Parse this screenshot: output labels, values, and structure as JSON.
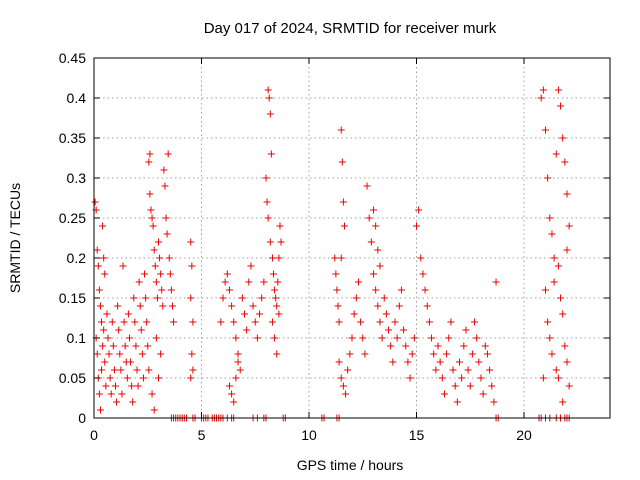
{
  "chart_data": {
    "type": "scatter",
    "title": "Day 017 of 2024, SRMTID for receiver murk",
    "xlabel": "GPS time / hours",
    "ylabel": "SRMTID / TECUs",
    "xlim": [
      0,
      24
    ],
    "ylim": [
      0,
      0.45
    ],
    "x_ticks": [
      0,
      5,
      10,
      15,
      20
    ],
    "y_ticks": [
      0,
      0.05,
      0.1,
      0.15,
      0.2,
      0.25,
      0.3,
      0.35,
      0.4,
      0.45
    ],
    "x_tick_labels": [
      "0",
      "5",
      "10",
      "15",
      "20"
    ],
    "y_tick_labels": [
      "0",
      "0.05",
      "0.1",
      "0.15",
      "0.2",
      "0.25",
      "0.3",
      "0.35",
      "0.4",
      "0.45"
    ],
    "grid": true,
    "marker": "+",
    "color": "#ee0000",
    "series": [
      {
        "name": "SRMTID",
        "points": [
          [
            0.05,
            0.27
          ],
          [
            0.1,
            0.26
          ],
          [
            0.15,
            0.21
          ],
          [
            0.2,
            0.19
          ],
          [
            0.25,
            0.16
          ],
          [
            0.3,
            0.14
          ],
          [
            0.35,
            0.12
          ],
          [
            0.4,
            0.24
          ],
          [
            0.45,
            0.2
          ],
          [
            0.5,
            0.18
          ],
          [
            0.1,
            0.1
          ],
          [
            0.15,
            0.08
          ],
          [
            0.2,
            0.05
          ],
          [
            0.25,
            0.03
          ],
          [
            0.3,
            0.01
          ],
          [
            0.35,
            0.06
          ],
          [
            0.4,
            0.09
          ],
          [
            0.45,
            0.11
          ],
          [
            0.5,
            0.07
          ],
          [
            0.55,
            0.04
          ],
          [
            0.6,
            0.13
          ],
          [
            0.65,
            0.1
          ],
          [
            0.7,
            0.08
          ],
          [
            0.75,
            0.05
          ],
          [
            0.8,
            0.03
          ],
          [
            0.85,
            0.12
          ],
          [
            0.9,
            0.09
          ],
          [
            0.95,
            0.06
          ],
          [
            1.0,
            0.04
          ],
          [
            1.05,
            0.02
          ],
          [
            1.1,
            0.14
          ],
          [
            1.15,
            0.11
          ],
          [
            1.2,
            0.08
          ],
          [
            1.25,
            0.06
          ],
          [
            1.3,
            0.03
          ],
          [
            1.35,
            0.19
          ],
          [
            1.4,
            0.12
          ],
          [
            1.45,
            0.09
          ],
          [
            1.5,
            0.07
          ],
          [
            1.55,
            0.05
          ],
          [
            1.6,
            0.13
          ],
          [
            1.65,
            0.1
          ],
          [
            1.7,
            0.07
          ],
          [
            1.75,
            0.04
          ],
          [
            1.8,
            0.02
          ],
          [
            1.85,
            0.15
          ],
          [
            1.9,
            0.12
          ],
          [
            1.95,
            0.09
          ],
          [
            2.0,
            0.06
          ],
          [
            2.05,
            0.04
          ],
          [
            2.1,
            0.17
          ],
          [
            2.15,
            0.14
          ],
          [
            2.2,
            0.11
          ],
          [
            2.25,
            0.08
          ],
          [
            2.3,
            0.05
          ],
          [
            2.35,
            0.18
          ],
          [
            2.4,
            0.15
          ],
          [
            2.45,
            0.12
          ],
          [
            2.5,
            0.09
          ],
          [
            2.55,
            0.06
          ],
          [
            2.55,
            0.32
          ],
          [
            2.6,
            0.33
          ],
          [
            2.6,
            0.28
          ],
          [
            2.65,
            0.26
          ],
          [
            2.7,
            0.25
          ],
          [
            2.75,
            0.24
          ],
          [
            2.8,
            0.21
          ],
          [
            2.85,
            0.19
          ],
          [
            2.9,
            0.17
          ],
          [
            2.95,
            0.15
          ],
          [
            3.0,
            0.22
          ],
          [
            3.05,
            0.2
          ],
          [
            3.1,
            0.18
          ],
          [
            3.15,
            0.16
          ],
          [
            3.2,
            0.14
          ],
          [
            3.25,
            0.31
          ],
          [
            3.3,
            0.29
          ],
          [
            3.35,
            0.25
          ],
          [
            3.4,
            0.23
          ],
          [
            3.45,
            0.33
          ],
          [
            3.5,
            0.2
          ],
          [
            3.55,
            0.18
          ],
          [
            3.6,
            0.16
          ],
          [
            3.65,
            0.14
          ],
          [
            3.7,
            0.12
          ],
          [
            2.7,
            0.03
          ],
          [
            2.8,
            0.01
          ],
          [
            3.0,
            0.05
          ],
          [
            3.1,
            0.08
          ],
          [
            2.9,
            0.1
          ],
          [
            3.6,
            0.0
          ],
          [
            3.7,
            0.0
          ],
          [
            3.8,
            0.0
          ],
          [
            3.9,
            0.0
          ],
          [
            4.0,
            0.0
          ],
          [
            4.1,
            0.0
          ],
          [
            4.2,
            0.0
          ],
          [
            4.3,
            0.0
          ],
          [
            4.6,
            0.0
          ],
          [
            4.7,
            0.0
          ],
          [
            4.5,
            0.22
          ],
          [
            4.55,
            0.19
          ],
          [
            4.5,
            0.15
          ],
          [
            4.6,
            0.12
          ],
          [
            4.55,
            0.08
          ],
          [
            4.6,
            0.06
          ],
          [
            4.5,
            0.05
          ],
          [
            5.0,
            0.0
          ],
          [
            5.1,
            0.0
          ],
          [
            5.2,
            0.0
          ],
          [
            5.3,
            0.0
          ],
          [
            5.5,
            0.0
          ],
          [
            5.6,
            0.0
          ],
          [
            5.7,
            0.0
          ],
          [
            5.8,
            0.0
          ],
          [
            5.9,
            0.0
          ],
          [
            6.0,
            0.0
          ],
          [
            6.2,
            0.0
          ],
          [
            6.4,
            0.0
          ],
          [
            6.5,
            0.0
          ],
          [
            5.9,
            0.12
          ],
          [
            6.0,
            0.15
          ],
          [
            6.1,
            0.17
          ],
          [
            6.2,
            0.18
          ],
          [
            6.3,
            0.16
          ],
          [
            6.4,
            0.14
          ],
          [
            6.5,
            0.12
          ],
          [
            6.6,
            0.1
          ],
          [
            6.7,
            0.08
          ],
          [
            6.8,
            0.06
          ],
          [
            6.3,
            0.04
          ],
          [
            6.4,
            0.03
          ],
          [
            6.5,
            0.02
          ],
          [
            6.6,
            0.05
          ],
          [
            6.7,
            0.07
          ],
          [
            6.9,
            0.15
          ],
          [
            7.0,
            0.13
          ],
          [
            7.1,
            0.11
          ],
          [
            7.2,
            0.17
          ],
          [
            7.3,
            0.19
          ],
          [
            7.4,
            0.14
          ],
          [
            7.5,
            0.12
          ],
          [
            7.6,
            0.1
          ],
          [
            7.7,
            0.13
          ],
          [
            7.8,
            0.15
          ],
          [
            7.9,
            0.17
          ],
          [
            7.4,
            0.0
          ],
          [
            7.6,
            0.0
          ],
          [
            7.9,
            0.0
          ],
          [
            8.0,
            0.0
          ],
          [
            8.0,
            0.3
          ],
          [
            8.05,
            0.27
          ],
          [
            8.1,
            0.41
          ],
          [
            8.15,
            0.4
          ],
          [
            8.2,
            0.38
          ],
          [
            8.25,
            0.33
          ],
          [
            8.1,
            0.25
          ],
          [
            8.2,
            0.22
          ],
          [
            8.3,
            0.2
          ],
          [
            8.35,
            0.18
          ],
          [
            8.4,
            0.16
          ],
          [
            8.45,
            0.15
          ],
          [
            8.5,
            0.14
          ],
          [
            8.55,
            0.17
          ],
          [
            8.6,
            0.2
          ],
          [
            8.65,
            0.24
          ],
          [
            8.7,
            0.22
          ],
          [
            8.3,
            0.12
          ],
          [
            8.4,
            0.1
          ],
          [
            8.5,
            0.08
          ],
          [
            8.6,
            0.13
          ],
          [
            8.8,
            0.0
          ],
          [
            8.9,
            0.0
          ],
          [
            10.6,
            0.0
          ],
          [
            10.7,
            0.0
          ],
          [
            11.3,
            0.0
          ],
          [
            11.4,
            0.0
          ],
          [
            11.2,
            0.2
          ],
          [
            11.25,
            0.18
          ],
          [
            11.3,
            0.16
          ],
          [
            11.35,
            0.14
          ],
          [
            11.4,
            0.12
          ],
          [
            11.5,
            0.36
          ],
          [
            11.55,
            0.32
          ],
          [
            11.6,
            0.27
          ],
          [
            11.65,
            0.24
          ],
          [
            11.5,
            0.2
          ],
          [
            11.4,
            0.07
          ],
          [
            11.5,
            0.05
          ],
          [
            11.6,
            0.04
          ],
          [
            11.7,
            0.03
          ],
          [
            11.8,
            0.06
          ],
          [
            11.9,
            0.08
          ],
          [
            12.0,
            0.1
          ],
          [
            12.1,
            0.13
          ],
          [
            12.2,
            0.15
          ],
          [
            12.3,
            0.17
          ],
          [
            12.4,
            0.12
          ],
          [
            12.5,
            0.1
          ],
          [
            12.6,
            0.08
          ],
          [
            12.7,
            0.29
          ],
          [
            12.8,
            0.25
          ],
          [
            12.9,
            0.22
          ],
          [
            13.0,
            0.26
          ],
          [
            13.1,
            0.24
          ],
          [
            13.2,
            0.21
          ],
          [
            13.3,
            0.19
          ],
          [
            13.0,
            0.18
          ],
          [
            13.1,
            0.16
          ],
          [
            13.2,
            0.14
          ],
          [
            13.3,
            0.12
          ],
          [
            13.4,
            0.1
          ],
          [
            13.5,
            0.15
          ],
          [
            13.6,
            0.13
          ],
          [
            13.7,
            0.11
          ],
          [
            13.8,
            0.09
          ],
          [
            13.9,
            0.07
          ],
          [
            14.0,
            0.12
          ],
          [
            14.1,
            0.1
          ],
          [
            14.2,
            0.14
          ],
          [
            14.3,
            0.16
          ],
          [
            14.4,
            0.11
          ],
          [
            14.5,
            0.09
          ],
          [
            14.6,
            0.07
          ],
          [
            14.7,
            0.05
          ],
          [
            14.8,
            0.08
          ],
          [
            14.9,
            0.1
          ],
          [
            15.0,
            0.24
          ],
          [
            15.1,
            0.26
          ],
          [
            15.2,
            0.2
          ],
          [
            15.3,
            0.18
          ],
          [
            15.4,
            0.16
          ],
          [
            15.5,
            0.14
          ],
          [
            15.6,
            0.12
          ],
          [
            15.7,
            0.1
          ],
          [
            15.8,
            0.08
          ],
          [
            15.9,
            0.06
          ],
          [
            16.0,
            0.09
          ],
          [
            16.1,
            0.07
          ],
          [
            16.2,
            0.05
          ],
          [
            16.3,
            0.03
          ],
          [
            16.4,
            0.08
          ],
          [
            16.5,
            0.1
          ],
          [
            16.6,
            0.12
          ],
          [
            16.7,
            0.06
          ],
          [
            16.8,
            0.04
          ],
          [
            16.9,
            0.02
          ],
          [
            17.0,
            0.07
          ],
          [
            17.1,
            0.05
          ],
          [
            17.2,
            0.09
          ],
          [
            17.3,
            0.11
          ],
          [
            17.4,
            0.06
          ],
          [
            17.5,
            0.04
          ],
          [
            17.6,
            0.08
          ],
          [
            17.7,
            0.12
          ],
          [
            17.8,
            0.1
          ],
          [
            17.9,
            0.07
          ],
          [
            18.0,
            0.05
          ],
          [
            18.1,
            0.03
          ],
          [
            18.2,
            0.09
          ],
          [
            18.3,
            0.08
          ],
          [
            18.4,
            0.06
          ],
          [
            18.5,
            0.04
          ],
          [
            18.6,
            0.02
          ],
          [
            18.7,
            0.17
          ],
          [
            18.7,
            0.0
          ],
          [
            18.8,
            0.0
          ],
          [
            20.7,
            0.0
          ],
          [
            20.8,
            0.0
          ],
          [
            21.0,
            0.0
          ],
          [
            21.2,
            0.0
          ],
          [
            21.5,
            0.0
          ],
          [
            21.7,
            0.0
          ],
          [
            21.9,
            0.0
          ],
          [
            22.0,
            0.0
          ],
          [
            22.1,
            0.0
          ],
          [
            20.8,
            0.4
          ],
          [
            20.9,
            0.41
          ],
          [
            21.0,
            0.36
          ],
          [
            21.1,
            0.3
          ],
          [
            21.2,
            0.25
          ],
          [
            21.3,
            0.23
          ],
          [
            21.4,
            0.2
          ],
          [
            21.5,
            0.33
          ],
          [
            21.6,
            0.41
          ],
          [
            21.7,
            0.39
          ],
          [
            21.8,
            0.35
          ],
          [
            21.9,
            0.32
          ],
          [
            22.0,
            0.28
          ],
          [
            22.1,
            0.24
          ],
          [
            21.0,
            0.16
          ],
          [
            21.1,
            0.12
          ],
          [
            21.2,
            0.1
          ],
          [
            21.3,
            0.08
          ],
          [
            21.5,
            0.06
          ],
          [
            21.6,
            0.05
          ],
          [
            21.7,
            0.15
          ],
          [
            21.8,
            0.13
          ],
          [
            21.9,
            0.09
          ],
          [
            22.0,
            0.07
          ],
          [
            22.1,
            0.04
          ],
          [
            21.4,
            0.17
          ],
          [
            21.6,
            0.19
          ],
          [
            22.0,
            0.21
          ],
          [
            20.9,
            0.05
          ],
          [
            21.8,
            0.02
          ]
        ]
      }
    ]
  }
}
